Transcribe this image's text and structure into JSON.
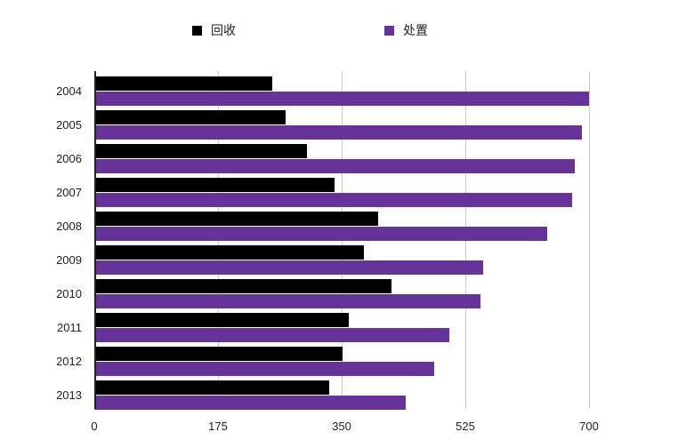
{
  "chart_data": {
    "type": "bar",
    "orientation": "horizontal",
    "title": "",
    "xlabel": "",
    "ylabel": "",
    "categories": [
      "2004",
      "2005",
      "2006",
      "2007",
      "2008",
      "2009",
      "2010",
      "2011",
      "2012",
      "2013"
    ],
    "series": [
      {
        "name": "回收",
        "color": "#000000",
        "values": [
          252,
          271,
          301,
          340,
          402,
          381,
          420,
          360,
          351,
          332
        ]
      },
      {
        "name": "处置",
        "color": "#663399",
        "values": [
          700,
          690,
          680,
          676,
          641,
          550,
          547,
          502,
          481,
          441
        ]
      }
    ],
    "xlim": [
      0,
      700
    ],
    "xticks": [
      "0",
      "175",
      "350",
      "525",
      "700"
    ],
    "grid": true,
    "legend_position": "top"
  }
}
